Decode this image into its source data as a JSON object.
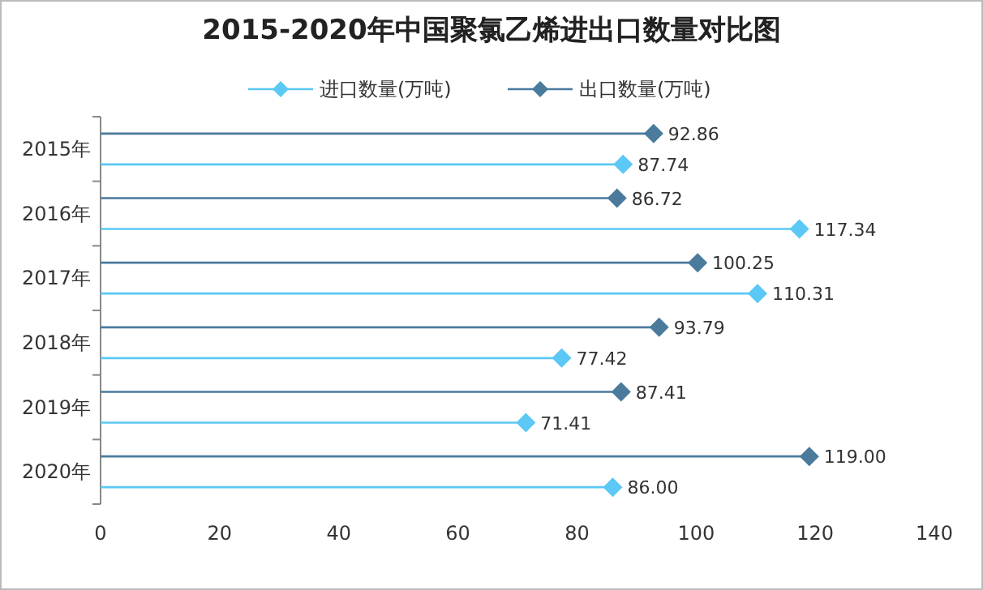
{
  "chart_data": {
    "type": "lollipop",
    "orientation": "horizontal",
    "title": "2015-2020年中国聚氯乙烯进出口数量对比图",
    "categories": [
      "2015年",
      "2016年",
      "2017年",
      "2018年",
      "2019年",
      "2020年"
    ],
    "series": [
      {
        "name": "进口数量(万吨)",
        "color": "#5bc8f5",
        "values": [
          87.74,
          117.34,
          110.31,
          77.42,
          71.41,
          86.0
        ],
        "value_labels": [
          "87.74",
          "117.34",
          "110.31",
          "77.42",
          "71.41",
          "86.00"
        ]
      },
      {
        "name": "出口数量(万吨)",
        "color": "#4a7a9c",
        "values": [
          92.86,
          86.72,
          100.25,
          93.79,
          87.41,
          119.0
        ],
        "value_labels": [
          "92.86",
          "86.72",
          "100.25",
          "93.79",
          "87.41",
          "119.00"
        ]
      }
    ],
    "xlim": [
      0,
      140
    ],
    "xticks": [
      0,
      20,
      40,
      60,
      80,
      100,
      120,
      140
    ],
    "legend": "top",
    "marker": "diamond"
  }
}
